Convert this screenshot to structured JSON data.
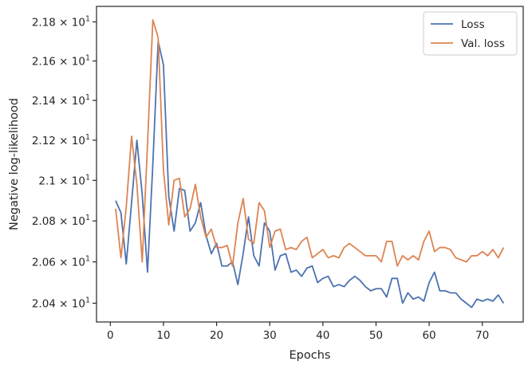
{
  "chart_data": {
    "type": "line",
    "xlabel": "Epochs",
    "ylabel": "Negative log-likelihood",
    "xlim": [
      -2.6,
      77.7
    ],
    "ylim": [
      20.31,
      21.88
    ],
    "xticks": [
      0,
      10,
      20,
      30,
      40,
      50,
      60,
      70
    ],
    "y_scale": "log",
    "yticks": [
      {
        "value": 20.4,
        "label": "2.04 × 10^1"
      },
      {
        "value": 20.6,
        "label": "2.06 × 10^1"
      },
      {
        "value": 20.8,
        "label": "2.08 × 10^1"
      },
      {
        "value": 21.0,
        "label": "2.1 × 10^1"
      },
      {
        "value": 21.2,
        "label": "2.12 × 10^1"
      },
      {
        "value": 21.4,
        "label": "2.14 × 10^1"
      },
      {
        "value": 21.6,
        "label": "2.16 × 10^1"
      },
      {
        "value": 21.8,
        "label": "2.18 × 10^1"
      }
    ],
    "grid": false,
    "legend_position": "top-right",
    "x": [
      1,
      2,
      3,
      4,
      5,
      6,
      7,
      8,
      9,
      10,
      11,
      12,
      13,
      14,
      15,
      16,
      17,
      18,
      19,
      20,
      21,
      22,
      23,
      24,
      25,
      26,
      27,
      28,
      29,
      30,
      31,
      32,
      33,
      34,
      35,
      36,
      37,
      38,
      39,
      40,
      41,
      42,
      43,
      44,
      45,
      46,
      47,
      48,
      49,
      50,
      51,
      52,
      53,
      54,
      55,
      56,
      57,
      58,
      59,
      60,
      61,
      62,
      63,
      64,
      65,
      66,
      67,
      68,
      69,
      70,
      71,
      72,
      73,
      74
    ],
    "series": [
      {
        "name": "Loss",
        "color": "#4c72b0",
        "values": [
          20.9,
          20.84,
          20.59,
          20.89,
          21.2,
          20.93,
          20.55,
          21.08,
          21.7,
          21.58,
          20.92,
          20.75,
          20.96,
          20.95,
          20.75,
          20.79,
          20.89,
          20.73,
          20.64,
          20.69,
          20.58,
          20.58,
          20.6,
          20.49,
          20.64,
          20.82,
          20.63,
          20.58,
          20.79,
          20.75,
          20.56,
          20.63,
          20.64,
          20.55,
          20.56,
          20.53,
          20.57,
          20.58,
          20.5,
          20.52,
          20.53,
          20.48,
          20.49,
          20.48,
          20.51,
          20.53,
          20.51,
          20.48,
          20.46,
          20.47,
          20.47,
          20.43,
          20.52,
          20.52,
          20.4,
          20.45,
          20.42,
          20.43,
          20.41,
          20.5,
          20.55,
          20.46,
          20.46,
          20.45,
          20.45,
          20.42,
          20.4,
          20.38,
          20.42,
          20.41,
          20.42,
          20.41,
          20.44,
          20.4
        ]
      },
      {
        "name": "Val. loss",
        "color": "#dd8452",
        "values": [
          20.86,
          20.62,
          20.87,
          21.22,
          20.98,
          20.6,
          21.18,
          21.81,
          21.72,
          21.05,
          20.78,
          21.0,
          21.01,
          20.82,
          20.86,
          20.98,
          20.82,
          20.72,
          20.76,
          20.67,
          20.67,
          20.68,
          20.58,
          20.79,
          20.91,
          20.71,
          20.69,
          20.89,
          20.85,
          20.67,
          20.75,
          20.76,
          20.66,
          20.67,
          20.66,
          20.7,
          20.72,
          20.62,
          20.64,
          20.66,
          20.62,
          20.63,
          20.62,
          20.67,
          20.69,
          20.67,
          20.65,
          20.63,
          20.63,
          20.63,
          20.6,
          20.7,
          20.7,
          20.58,
          20.63,
          20.61,
          20.63,
          20.61,
          20.7,
          20.75,
          20.65,
          20.67,
          20.67,
          20.66,
          20.62,
          20.61,
          20.6,
          20.63,
          20.63,
          20.65,
          20.63,
          20.66,
          20.62,
          20.67
        ]
      }
    ]
  }
}
